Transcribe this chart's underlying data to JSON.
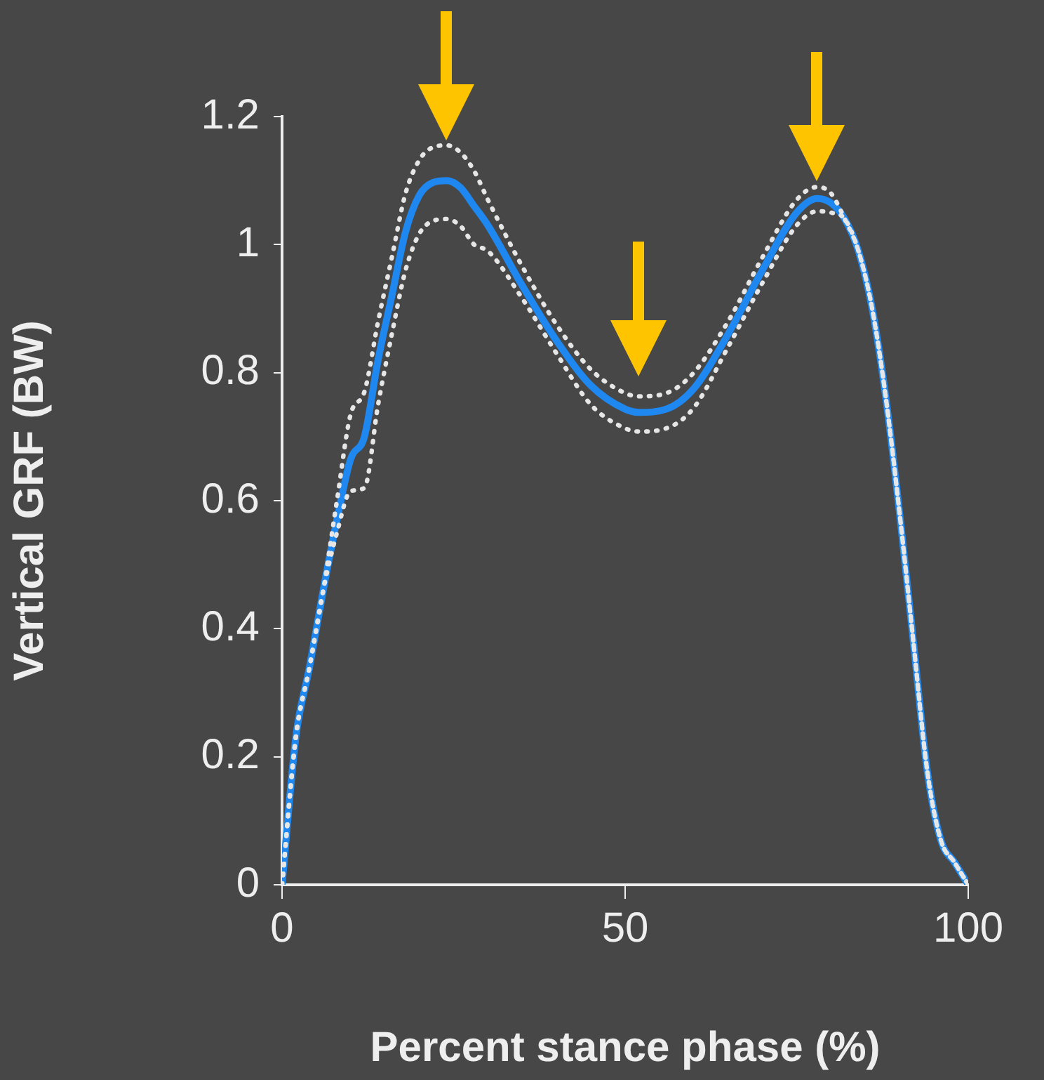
{
  "chart_data": {
    "type": "line",
    "xlabel": "Percent stance phase (%)",
    "ylabel": "Vertical GRF (BW)",
    "x": [
      0,
      2,
      4,
      6,
      8,
      10,
      12,
      14,
      16,
      18,
      20,
      22,
      24,
      26,
      28,
      30,
      35,
      40,
      45,
      50,
      52,
      56,
      60,
      65,
      70,
      75,
      78,
      80,
      82,
      84,
      86,
      88,
      90,
      92,
      94,
      96,
      98,
      100
    ],
    "series": [
      {
        "color": "#1e88f0",
        "line_style": "solid",
        "values": [
          0,
          0.23,
          0.34,
          0.46,
          0.57,
          0.665,
          0.7,
          0.82,
          0.92,
          1.02,
          1.077,
          1.097,
          1.1,
          1.089,
          1.06,
          1.03,
          0.936,
          0.85,
          0.78,
          0.743,
          0.738,
          0.743,
          0.775,
          0.86,
          0.96,
          1.05,
          1.072,
          1.065,
          1.04,
          0.99,
          0.9,
          0.76,
          0.58,
          0.38,
          0.18,
          0.07,
          0.035,
          0
        ]
      },
      {
        "color": "#e6e6e6",
        "line_style": "dotted",
        "values": [
          0,
          0.23,
          0.34,
          0.46,
          0.6,
          0.735,
          0.77,
          0.88,
          0.98,
          1.08,
          1.132,
          1.152,
          1.155,
          1.144,
          1.115,
          1.07,
          0.966,
          0.875,
          0.805,
          0.768,
          0.763,
          0.768,
          0.8,
          0.88,
          0.98,
          1.07,
          1.09,
          1.08,
          1.04,
          0.99,
          0.9,
          0.76,
          0.58,
          0.38,
          0.18,
          0.07,
          0.035,
          0
        ]
      },
      {
        "color": "#e6e6e6",
        "line_style": "dotted",
        "values": [
          0,
          0.23,
          0.34,
          0.46,
          0.55,
          0.615,
          0.62,
          0.75,
          0.86,
          0.96,
          1.017,
          1.037,
          1.04,
          1.029,
          1.0,
          0.99,
          0.916,
          0.83,
          0.75,
          0.713,
          0.708,
          0.713,
          0.745,
          0.84,
          0.94,
          1.03,
          1.052,
          1.05,
          1.04,
          0.99,
          0.9,
          0.76,
          0.58,
          0.38,
          0.18,
          0.07,
          0.035,
          0
        ]
      }
    ],
    "xlim": [
      0,
      100
    ],
    "xticks": [
      0,
      50,
      100
    ],
    "ylim": [
      0,
      1.2
    ],
    "yticks": [
      0,
      0.2,
      0.4,
      0.6,
      0.8,
      1,
      1.2
    ],
    "grid": false,
    "legend": false,
    "marker": "none"
  }
}
